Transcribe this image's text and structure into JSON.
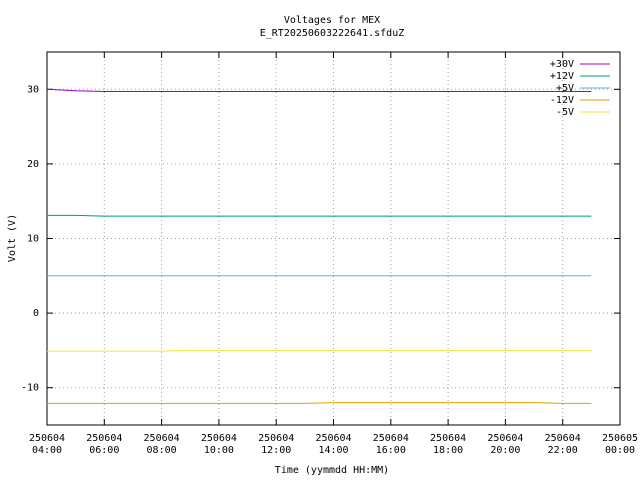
{
  "chart_data": {
    "type": "line",
    "title": "Voltages for MEX",
    "subtitle": "E_RT20250603222641.sfduZ",
    "x_label": "Time (yymmdd HH:MM)",
    "y_label": "Volt (V)",
    "x": [
      4,
      5,
      6,
      7,
      8,
      9,
      10,
      11,
      12,
      13,
      14,
      15,
      16,
      17,
      18,
      19,
      20,
      21,
      22,
      23
    ],
    "series": [
      {
        "name": "+30V",
        "color": "#9400d3",
        "values": [
          30.0,
          29.8,
          29.7,
          29.7,
          29.7,
          29.7,
          29.7,
          29.7,
          29.7,
          29.7,
          29.7,
          29.7,
          29.7,
          29.7,
          29.7,
          29.7,
          29.7,
          29.7,
          29.7,
          29.7
        ]
      },
      {
        "name": "+12V",
        "color": "#009e73",
        "values": [
          13.1,
          13.1,
          13.0,
          13.0,
          13.0,
          13.0,
          13.0,
          13.0,
          13.0,
          13.0,
          13.0,
          13.0,
          13.0,
          13.0,
          13.0,
          13.0,
          13.0,
          13.0,
          13.0,
          13.0
        ]
      },
      {
        "name": "+5V",
        "color": "#56b4e9",
        "values": [
          5.0,
          5.0,
          5.0,
          5.0,
          5.0,
          5.0,
          5.0,
          5.0,
          5.0,
          5.0,
          5.0,
          5.0,
          5.0,
          5.0,
          5.0,
          5.0,
          5.0,
          5.0,
          5.0,
          5.0
        ]
      },
      {
        "name": "-12V",
        "color": "#e69f00",
        "values": [
          -12.1,
          -12.1,
          -12.1,
          -12.1,
          -12.1,
          -12.1,
          -12.1,
          -12.1,
          -12.1,
          -12.1,
          -12.0,
          -12.0,
          -12.0,
          -12.0,
          -12.0,
          -12.0,
          -12.0,
          -12.0,
          -12.1,
          -12.1
        ]
      },
      {
        "name": "-5V",
        "color": "#f0e442",
        "values": [
          -5.1,
          -5.1,
          -5.1,
          -5.1,
          -5.1,
          -5.0,
          -5.0,
          -5.0,
          -5.0,
          -5.0,
          -5.0,
          -5.0,
          -5.0,
          -5.0,
          -5.0,
          -5.0,
          -5.0,
          -5.0,
          -5.0,
          -5.0
        ]
      }
    ],
    "xlim": [
      4,
      24
    ],
    "xticks": [
      {
        "value": 4,
        "label": "250604\n04:00"
      },
      {
        "value": 6,
        "label": "250604\n06:00"
      },
      {
        "value": 8,
        "label": "250604\n08:00"
      },
      {
        "value": 10,
        "label": "250604\n10:00"
      },
      {
        "value": 12,
        "label": "250604\n12:00"
      },
      {
        "value": 14,
        "label": "250604\n14:00"
      },
      {
        "value": 16,
        "label": "250604\n16:00"
      },
      {
        "value": 18,
        "label": "250604\n18:00"
      },
      {
        "value": 20,
        "label": "250604\n20:00"
      },
      {
        "value": 22,
        "label": "250604\n22:00"
      },
      {
        "value": 24,
        "label": "250605\n00:00"
      }
    ],
    "ylim": [
      -15,
      35
    ],
    "yticks": [
      -10,
      0,
      10,
      20,
      30
    ],
    "grid": true,
    "legend": "top-right"
  }
}
